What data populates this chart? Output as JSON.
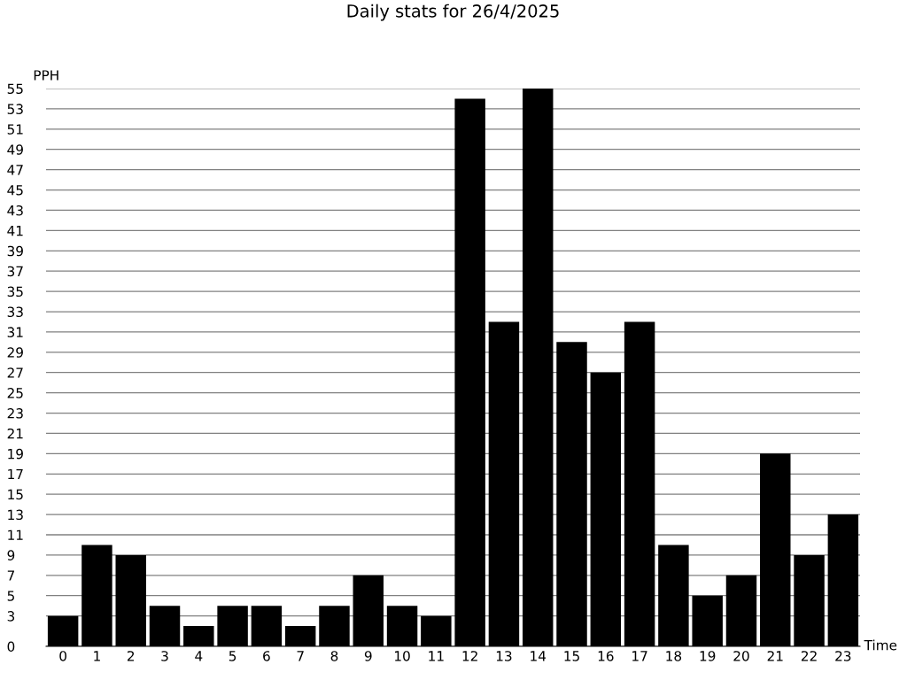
{
  "chart_data": {
    "type": "bar",
    "title": "Daily stats for 26/4/2025",
    "xlabel": "Time",
    "ylabel": "PPH",
    "categories": [
      "0",
      "1",
      "2",
      "3",
      "4",
      "5",
      "6",
      "7",
      "8",
      "9",
      "10",
      "11",
      "12",
      "13",
      "14",
      "15",
      "16",
      "17",
      "18",
      "19",
      "20",
      "21",
      "22",
      "23"
    ],
    "values": [
      3,
      10,
      9,
      4,
      2,
      4,
      4,
      2,
      4,
      7,
      4,
      3,
      54,
      32,
      55,
      30,
      27,
      32,
      10,
      5,
      7,
      19,
      9,
      13
    ],
    "color": "#000000",
    "ylim": [
      0,
      55
    ],
    "yticks": [
      0,
      3,
      5,
      7,
      9,
      11,
      13,
      15,
      17,
      19,
      21,
      23,
      25,
      27,
      29,
      31,
      33,
      35,
      37,
      39,
      41,
      43,
      45,
      47,
      49,
      51,
      53,
      55
    ],
    "grid": "y",
    "legend": false
  }
}
